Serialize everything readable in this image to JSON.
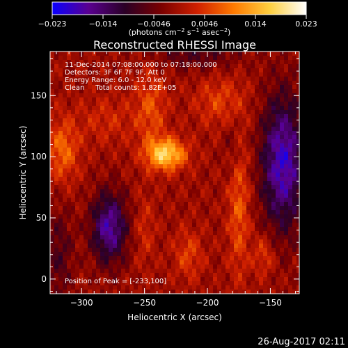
{
  "chart_data": {
    "type": "heatmap",
    "title": "Reconstructed RHESSI Image",
    "xlabel": "Heliocentric X (arcsec)",
    "ylabel": "Heliocentric Y (arcsec)",
    "xlim": [
      -325,
      -127
    ],
    "ylim": [
      -12,
      186
    ],
    "x_ticks": [
      {
        "value": -300,
        "label": "−300"
      },
      {
        "value": -250,
        "label": "−250"
      },
      {
        "value": -200,
        "label": "−200"
      },
      {
        "value": -150,
        "label": "−150"
      }
    ],
    "y_ticks": [
      {
        "value": 0,
        "label": "0"
      },
      {
        "value": 50,
        "label": "50"
      },
      {
        "value": 100,
        "label": "100"
      },
      {
        "value": 150,
        "label": "150"
      }
    ],
    "colorbar": {
      "min": -0.023,
      "max": 0.023,
      "tick_labels": [
        "−0.023",
        "−0.014",
        "−0.0046",
        "0.0046",
        "0.014",
        "0.023"
      ],
      "units_parts": [
        "(photons cm",
        "−2",
        " s",
        "−1",
        " asec",
        "−2",
        ")"
      ],
      "colors": [
        "#0a00ff",
        "#5a0090",
        "#2a0026",
        "#7a0000",
        "#d02000",
        "#ff7a00",
        "#ffd040",
        "#ffffff"
      ]
    },
    "annotations": [
      "11-Dec-2014 07:08:00.000 to 07:18:00.000",
      "Detectors: 3F 6F 7F 9F, Att 0",
      "Energy Range: 6.0 - 12.0 keV",
      "Clean     Total counts: 1.82E+05"
    ],
    "peak": {
      "x": -233,
      "y": 100,
      "label": "Position of Peak = [-233,100]"
    },
    "features": [
      {
        "x": -233,
        "y": 102,
        "sx": 11,
        "sy": 9,
        "a": 0.018
      },
      {
        "x": -245,
        "y": 140,
        "sx": 9,
        "sy": 22,
        "a": 0.007
      },
      {
        "x": -315,
        "y": 105,
        "sx": 9,
        "sy": 18,
        "a": 0.009
      },
      {
        "x": -190,
        "y": 145,
        "sx": 14,
        "sy": 14,
        "a": 0.006
      },
      {
        "x": -175,
        "y": 60,
        "sx": 6,
        "sy": 40,
        "a": 0.008
      },
      {
        "x": -155,
        "y": 20,
        "sx": 6,
        "sy": 12,
        "a": 0.006
      },
      {
        "x": -250,
        "y": 40,
        "sx": 6,
        "sy": 20,
        "a": 0.004
      },
      {
        "x": -215,
        "y": 20,
        "sx": 8,
        "sy": 14,
        "a": 0.006
      },
      {
        "x": -280,
        "y": 130,
        "sx": 16,
        "sy": 14,
        "a": 0.004
      },
      {
        "x": -140,
        "y": 95,
        "sx": 12,
        "sy": 38,
        "a": -0.018
      },
      {
        "x": -278,
        "y": 42,
        "sx": 10,
        "sy": 20,
        "a": -0.016
      },
      {
        "x": -318,
        "y": 20,
        "sx": 8,
        "sy": 28,
        "a": -0.006
      },
      {
        "x": -210,
        "y": 185,
        "sx": 25,
        "sy": 10,
        "a": -0.006
      },
      {
        "x": -180,
        "y": 110,
        "sx": 5,
        "sy": 20,
        "a": -0.004
      }
    ],
    "grid": false
  },
  "footer": {
    "timestamp": "26-Aug-2017 02:11"
  }
}
